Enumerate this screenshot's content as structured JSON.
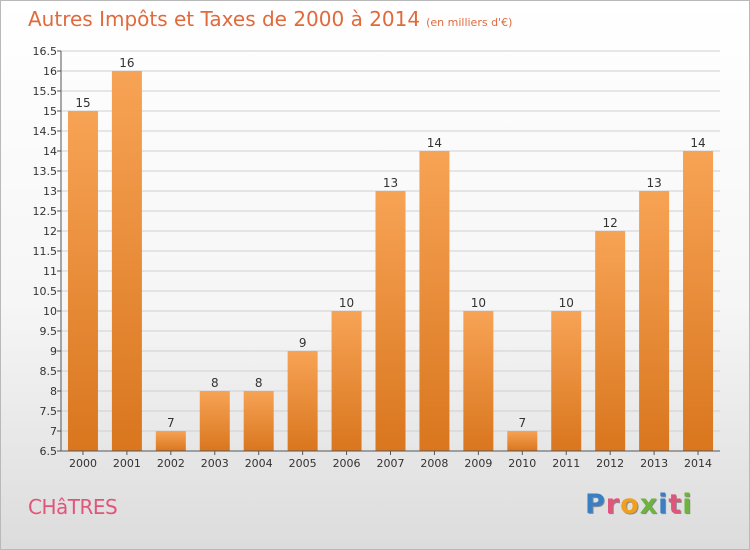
{
  "header": {
    "title": "Autres Impôts et Taxes de 2000 à 2014",
    "subtitle": "(en milliers d'€)"
  },
  "footer": {
    "town": "CHâTRES",
    "logo_letters": [
      {
        "char": "P",
        "color": "#3a7fc4"
      },
      {
        "char": "r",
        "color": "#e0557a"
      },
      {
        "char": "o",
        "color": "#f0a020"
      },
      {
        "char": "x",
        "color": "#6cb33f"
      },
      {
        "char": "i",
        "color": "#3a7fc4"
      },
      {
        "char": "t",
        "color": "#e0557a"
      },
      {
        "char": "i",
        "color": "#6cb33f"
      }
    ]
  },
  "colors": {
    "bar_top": "#f7a355",
    "bar_bottom": "#d9761e",
    "title": "#e06a3c",
    "grid": "#d0d0d0",
    "axis": "#555555"
  },
  "chart_data": {
    "type": "bar",
    "categories": [
      "2000",
      "2001",
      "2002",
      "2003",
      "2004",
      "2005",
      "2006",
      "2007",
      "2008",
      "2009",
      "2010",
      "2011",
      "2012",
      "2013",
      "2014"
    ],
    "values": [
      15,
      16,
      7,
      8,
      8,
      9,
      10,
      13,
      14,
      10,
      7,
      10,
      12,
      13,
      14
    ],
    "data_labels": [
      "15",
      "16",
      "7",
      "8",
      "8",
      "9",
      "10",
      "13",
      "14",
      "10",
      "7",
      "10",
      "12",
      "13",
      "14"
    ],
    "ylim": [
      6.5,
      16.5
    ],
    "yticks": [
      6.5,
      7,
      7.5,
      8,
      8.5,
      9,
      9.5,
      10,
      10.5,
      11,
      11.5,
      12,
      12.5,
      13,
      13.5,
      14,
      14.5,
      15,
      15.5,
      16,
      16.5
    ],
    "ytick_labels": [
      "6.5",
      "7",
      "7.5",
      "8",
      "8.5",
      "9",
      "9.5",
      "10",
      "10.5",
      "11",
      "11.5",
      "12",
      "12.5",
      "13",
      "13.5",
      "14",
      "14.5",
      "15",
      "15.5",
      "16",
      "16.5"
    ],
    "grid": true
  }
}
